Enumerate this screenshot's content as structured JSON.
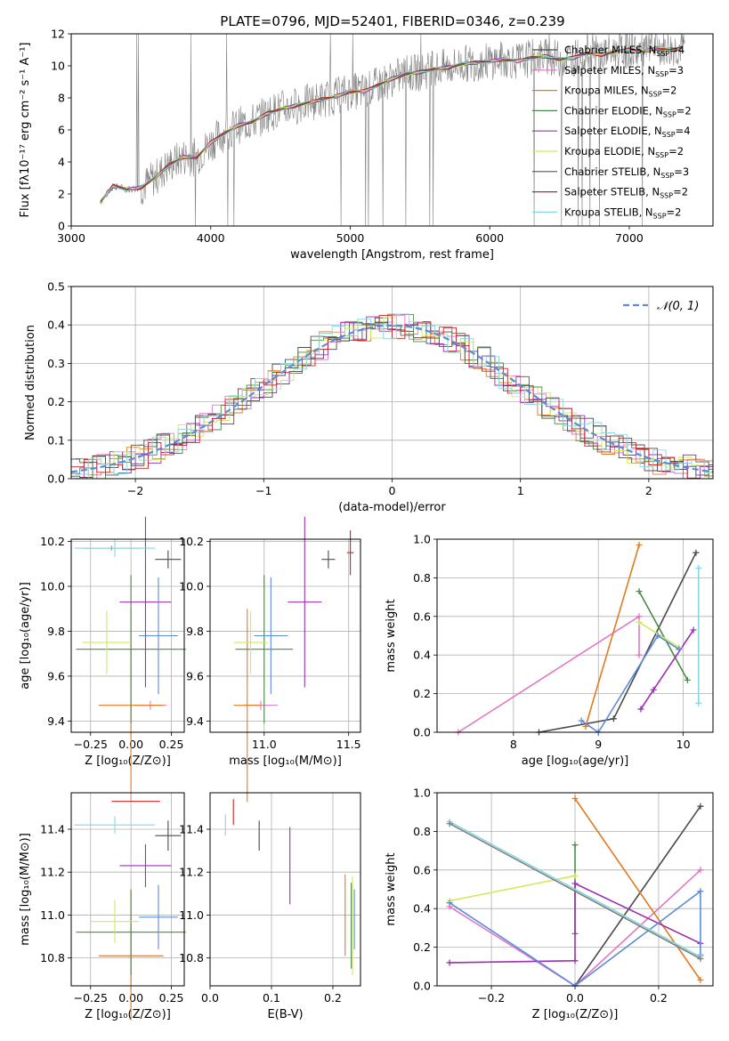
{
  "title": "PLATE=0796, MJD=52401, FIBERID=0346, z=0.239",
  "chart_data": [
    {
      "id": "spectrum",
      "type": "line",
      "xlabel": "wavelength [Angstrom, rest frame]",
      "ylabel": "Flux [fλ10⁻¹⁷ erg cm⁻² s⁻¹ A⁻¹]",
      "xlim": [
        3000,
        7600
      ],
      "ylim": [
        0,
        12
      ],
      "xticks": [
        3000,
        4000,
        5000,
        6000,
        7000
      ],
      "yticks": [
        0,
        2,
        4,
        6,
        8,
        10,
        12
      ],
      "grid": false,
      "legend_position": "top-right",
      "series": [
        {
          "name": "Chabrier MILES, N",
          "sub": "SSP",
          "suffix": "=4",
          "color": "#4a4a4a"
        },
        {
          "name": "Salpeter MILES, N",
          "sub": "SSP",
          "suffix": "=3",
          "color": "#e377c2"
        },
        {
          "name": "Kroupa MILES, N",
          "sub": "SSP",
          "suffix": "=2",
          "color": "#e07b20"
        },
        {
          "name": "Chabrier ELODIE, N",
          "sub": "SSP",
          "suffix": "=2",
          "color": "#4a8a4a"
        },
        {
          "name": "Salpeter ELODIE, N",
          "sub": "SSP",
          "suffix": "=4",
          "color": "#9b30b0"
        },
        {
          "name": "Kroupa ELODIE, N",
          "sub": "SSP",
          "suffix": "=2",
          "color": "#d4e85a"
        },
        {
          "name": "Chabrier STELIB, N",
          "sub": "SSP",
          "suffix": "=3",
          "color": "#555555"
        },
        {
          "name": "Salpeter STELIB, N",
          "sub": "SSP",
          "suffix": "=2",
          "color": "#cc2222"
        },
        {
          "name": "Kroupa STELIB, N",
          "sub": "SSP",
          "suffix": "=2",
          "color": "#86d8e0"
        }
      ],
      "data_color": "#808080",
      "x": [
        3210,
        3300,
        3400,
        3500,
        3600,
        3700,
        3800,
        3900,
        4000,
        4100,
        4200,
        4300,
        4400,
        4500,
        4600,
        4700,
        4800,
        4900,
        5000,
        5100,
        5200,
        5300,
        5400,
        5500,
        5600,
        5700,
        5800,
        5900,
        6000,
        6100,
        6200,
        6300,
        6400,
        6500,
        6600,
        6700,
        6800,
        6900,
        7000,
        7100,
        7200,
        7300,
        7380
      ],
      "model_flux": [
        1.5,
        2.5,
        2.3,
        2.4,
        3.0,
        3.8,
        4.3,
        4.3,
        5.2,
        5.8,
        6.3,
        6.5,
        7.0,
        7.3,
        7.5,
        7.7,
        7.9,
        8.1,
        8.4,
        8.4,
        8.8,
        9.2,
        9.5,
        9.6,
        9.8,
        9.9,
        10.1,
        10.2,
        10.3,
        10.4,
        10.3,
        10.5,
        10.6,
        10.4,
        10.5,
        10.8,
        10.7,
        10.9,
        11.0,
        10.9,
        11.1,
        11.0,
        11.1
      ]
    },
    {
      "id": "residuals",
      "type": "line",
      "xlabel": "(data-model)/error",
      "ylabel": "Normed distribution",
      "xlim": [
        -2.5,
        2.5
      ],
      "ylim": [
        0,
        0.5
      ],
      "xticks": [
        -2,
        -1,
        0,
        1,
        2
      ],
      "xticklabels": [
        "−2",
        "−1",
        "0",
        "1",
        "2"
      ],
      "yticks": [
        0.0,
        0.1,
        0.2,
        0.3,
        0.4,
        0.5
      ],
      "yticklabels": [
        "0.0",
        "0.1",
        "0.2",
        "0.3",
        "0.4",
        "0.5"
      ],
      "grid": true,
      "legend_position": "top-right",
      "gaussian_label": "𝒩(0, 1)",
      "gaussian_color": "#5b8bd9"
    },
    {
      "id": "age-vs-Z",
      "type": "scatter",
      "xlabel": "Z [log₁₀(Z/Z⊙)]",
      "ylabel": "age  [log₁₀(age/yr)]",
      "xlim": [
        -0.37,
        0.33
      ],
      "ylim": [
        9.35,
        10.21
      ],
      "xticks": [
        -0.25,
        0.0,
        0.25
      ],
      "xticklabels": [
        "−0.25",
        "0.00",
        "0.25"
      ],
      "yticks": [
        9.4,
        9.6,
        9.8,
        10.0,
        10.2
      ],
      "yticklabels": [
        "9.4",
        "9.6",
        "9.8",
        "10.0",
        "10.2"
      ],
      "grid": true,
      "points": [
        {
          "x": 0.23,
          "y": 10.12,
          "xerr": 0.08,
          "yerr": 0.04,
          "color": "#4a4a4a"
        },
        {
          "x": 0.12,
          "y": 9.47,
          "xerr": 0.1,
          "yerr": 0.02,
          "color": "#e377c2"
        },
        {
          "x": 0.0,
          "y": 9.47,
          "xerr": 0.2,
          "yerr": 0.43,
          "color": "#e07b20"
        },
        {
          "x": 0.0,
          "y": 9.72,
          "xerr": 0.34,
          "yerr": 0.33,
          "color": "#4a8a4a"
        },
        {
          "x": 0.09,
          "y": 9.93,
          "xerr": 0.16,
          "yerr": 0.38,
          "color": "#9b30b0"
        },
        {
          "x": -0.15,
          "y": 9.75,
          "xerr": 0.15,
          "yerr": 0.14,
          "color": "#d4e85a"
        },
        {
          "x": -0.12,
          "y": 10.17,
          "xerr": 0.18,
          "yerr": 0.01,
          "color": "#808080"
        },
        {
          "x": 0.17,
          "y": 9.78,
          "xerr": 0.12,
          "yerr": 0.26,
          "color": "#5b8bd9"
        },
        {
          "x": -0.1,
          "y": 10.17,
          "xerr": 0.25,
          "yerr": 0.04,
          "color": "#86d8e0"
        }
      ]
    },
    {
      "id": "age-vs-mass",
      "type": "scatter",
      "xlabel": "mass [log₁₀(M/M⊙)]",
      "ylabel": "",
      "xlim": [
        10.68,
        11.57
      ],
      "ylim": [
        9.35,
        10.21
      ],
      "xticks": [
        11.0,
        11.5
      ],
      "xticklabels": [
        "11.0",
        "11.5"
      ],
      "yticks": [
        9.4,
        9.6,
        9.8,
        10.0,
        10.2
      ],
      "yticklabels": [
        "9.4",
        "9.6",
        "9.8",
        "10.0",
        "10.2"
      ],
      "grid": true,
      "points": [
        {
          "x": 11.38,
          "y": 10.12,
          "xerr": 0.04,
          "yerr": 0.04,
          "color": "#4a4a4a"
        },
        {
          "x": 10.98,
          "y": 9.47,
          "xerr": 0.1,
          "yerr": 0.02,
          "color": "#e377c2"
        },
        {
          "x": 10.9,
          "y": 9.47,
          "xerr": 0.08,
          "yerr": 0.43,
          "color": "#e07b20"
        },
        {
          "x": 11.0,
          "y": 9.72,
          "xerr": 0.17,
          "yerr": 0.33,
          "color": "#4a8a4a"
        },
        {
          "x": 11.24,
          "y": 9.93,
          "xerr": 0.1,
          "yerr": 0.38,
          "color": "#9b30b0"
        },
        {
          "x": 10.92,
          "y": 9.75,
          "xerr": 0.1,
          "yerr": 0.14,
          "color": "#d4e85a"
        },
        {
          "x": 11.04,
          "y": 9.78,
          "xerr": 0.1,
          "yerr": 0.26,
          "color": "#5b8bd9"
        },
        {
          "x": 11.51,
          "y": 10.15,
          "xerr": 0.02,
          "yerr": 0.1,
          "color": "#cc2222"
        }
      ]
    },
    {
      "id": "weight-vs-age",
      "type": "line",
      "xlabel": "age  [log₁₀(age/yr)]",
      "ylabel": "mass weight",
      "xlim": [
        7.1,
        10.35
      ],
      "ylim": [
        0,
        1.0
      ],
      "xticks": [
        8,
        9,
        10
      ],
      "xticklabels": [
        "8",
        "9",
        "10"
      ],
      "yticks": [
        0.0,
        0.2,
        0.4,
        0.6,
        0.8,
        1.0
      ],
      "yticklabels": [
        "0.0",
        "0.2",
        "0.4",
        "0.6",
        "0.8",
        "1.0"
      ],
      "grid": true,
      "series": [
        {
          "color": "#4a4a4a",
          "x": [
            8.3,
            9.18,
            10.15
          ],
          "y": [
            0.0,
            0.07,
            0.93
          ]
        },
        {
          "color": "#e377c2",
          "x": [
            7.35,
            9.48,
            9.48
          ],
          "y": [
            0.0,
            0.6,
            0.4
          ]
        },
        {
          "color": "#e07b20",
          "x": [
            8.85,
            9.48
          ],
          "y": [
            0.03,
            0.97
          ]
        },
        {
          "color": "#4a8a4a",
          "x": [
            9.48,
            10.05
          ],
          "y": [
            0.73,
            0.27
          ]
        },
        {
          "color": "#9b30b0",
          "x": [
            9.5,
            9.65,
            10.12
          ],
          "y": [
            0.12,
            0.22,
            0.53
          ]
        },
        {
          "color": "#d4e85a",
          "x": [
            9.48,
            9.95
          ],
          "y": [
            0.57,
            0.44
          ]
        },
        {
          "color": "#5b8bd9",
          "x": [
            8.8,
            9.0,
            9.7,
            9.95
          ],
          "y": [
            0.06,
            0.0,
            0.5,
            0.43
          ]
        },
        {
          "color": "#86d8e0",
          "x": [
            10.18,
            10.18
          ],
          "y": [
            0.85,
            0.15
          ]
        }
      ]
    },
    {
      "id": "mass-vs-Z",
      "type": "scatter",
      "xlabel": "Z [log₁₀(Z/Z⊙)]",
      "ylabel": "mass [log₁₀(M/M⊙)]",
      "xlim": [
        -0.37,
        0.33
      ],
      "ylim": [
        10.67,
        11.57
      ],
      "xticks": [
        -0.25,
        0.0,
        0.25
      ],
      "xticklabels": [
        "−0.25",
        "0.00",
        "0.25"
      ],
      "yticks": [
        10.8,
        11.0,
        11.2,
        11.4
      ],
      "yticklabels": [
        "10.8",
        "11.0",
        "11.2",
        "11.4"
      ],
      "grid": true,
      "points": [
        {
          "x": 0.23,
          "y": 11.37,
          "xerr": 0.08,
          "yerr": 0.07,
          "color": "#4a4a4a"
        },
        {
          "x": 0.0,
          "y": 10.81,
          "xerr": 0.2,
          "yerr": 0.12,
          "color": "#e377c2"
        },
        {
          "x": 0.0,
          "y": 10.81,
          "xerr": 0.2,
          "yerr": 0.3,
          "color": "#e07b20"
        },
        {
          "x": 0.0,
          "y": 10.92,
          "xerr": 0.34,
          "yerr": 0.2,
          "color": "#4a8a4a"
        },
        {
          "x": 0.09,
          "y": 11.23,
          "xerr": 0.16,
          "yerr": 0.1,
          "color": "#9b30b0"
        },
        {
          "x": -0.1,
          "y": 10.97,
          "xerr": 0.15,
          "yerr": 0.1,
          "color": "#d4e85a"
        },
        {
          "x": 0.17,
          "y": 10.99,
          "xerr": 0.12,
          "yerr": 0.15,
          "color": "#5b8bd9"
        },
        {
          "x": 0.03,
          "y": 11.53,
          "xerr": 0.15,
          "yerr": 0.0,
          "color": "#cc2222"
        },
        {
          "x": -0.1,
          "y": 11.42,
          "xerr": 0.25,
          "yerr": 0.04,
          "color": "#86d8e0"
        }
      ]
    },
    {
      "id": "mass-vs-EBV",
      "type": "scatter",
      "xlabel": "E(B-V)",
      "ylabel": "",
      "xlim": [
        0.0,
        0.245
      ],
      "ylim": [
        10.67,
        11.57
      ],
      "xticks": [
        0.0,
        0.1,
        0.2
      ],
      "xticklabels": [
        "0.0",
        "0.1",
        "0.2"
      ],
      "yticks": [
        10.8,
        11.0,
        11.2,
        11.4
      ],
      "yticklabels": [
        "10.8",
        "11.0",
        "11.2",
        "11.4"
      ],
      "grid": true,
      "points": [
        {
          "x": 0.08,
          "y": 11.37,
          "xerr": 0.0,
          "yerr": 0.07,
          "color": "#4a4a4a"
        },
        {
          "x": 0.13,
          "y": 11.23,
          "xerr": 0.0,
          "yerr": 0.18,
          "color": "#9b30b0"
        },
        {
          "x": 0.22,
          "y": 11.0,
          "xerr": 0.0,
          "yerr": 0.19,
          "color": "#e07b20"
        },
        {
          "x": 0.23,
          "y": 10.95,
          "xerr": 0.0,
          "yerr": 0.2,
          "color": "#4a8a4a"
        },
        {
          "x": 0.232,
          "y": 10.95,
          "xerr": 0.0,
          "yerr": 0.23,
          "color": "#d4e85a"
        },
        {
          "x": 0.235,
          "y": 10.98,
          "xerr": 0.0,
          "yerr": 0.14,
          "color": "#5b8bd9"
        },
        {
          "x": 0.038,
          "y": 11.48,
          "xerr": 0.0,
          "yerr": 0.06,
          "color": "#cc2222"
        },
        {
          "x": 0.025,
          "y": 11.42,
          "xerr": 0.0,
          "yerr": 0.05,
          "color": "#86d8e0"
        }
      ]
    },
    {
      "id": "weight-vs-Z",
      "type": "line",
      "xlabel": "Z [log₁₀(Z/Z⊙)]",
      "ylabel": "mass weight",
      "xlim": [
        -0.33,
        0.33
      ],
      "ylim": [
        0,
        1.0
      ],
      "xticks": [
        -0.2,
        0.0,
        0.2
      ],
      "xticklabels": [
        "−0.2",
        "0.0",
        "0.2"
      ],
      "yticks": [
        0.0,
        0.2,
        0.4,
        0.6,
        0.8,
        1.0
      ],
      "yticklabels": [
        "0.0",
        "0.2",
        "0.4",
        "0.6",
        "0.8",
        "1.0"
      ],
      "grid": true,
      "series": [
        {
          "color": "#4a4a4a",
          "x": [
            0.0,
            0.3
          ],
          "y": [
            0.0,
            0.93
          ]
        },
        {
          "color": "#e377c2",
          "x": [
            -0.3,
            0.0,
            0.3
          ],
          "y": [
            0.41,
            0.0,
            0.6
          ]
        },
        {
          "color": "#e07b20",
          "x": [
            0.0,
            0.3
          ],
          "y": [
            0.97,
            0.03
          ]
        },
        {
          "color": "#4a8a4a",
          "x": [
            0.0,
            0.0
          ],
          "y": [
            0.73,
            0.27
          ]
        },
        {
          "color": "#9b30b0",
          "x": [
            -0.3,
            0.0,
            0.0,
            0.3
          ],
          "y": [
            0.12,
            0.13,
            0.53,
            0.22
          ]
        },
        {
          "color": "#d4e85a",
          "x": [
            -0.3,
            0.0
          ],
          "y": [
            0.44,
            0.57
          ]
        },
        {
          "color": "#5b8bd9",
          "x": [
            -0.3,
            0.0,
            0.3,
            0.3
          ],
          "y": [
            0.43,
            0.0,
            0.49,
            0.16
          ]
        },
        {
          "color": "#86d8e0",
          "x": [
            -0.3,
            0.3
          ],
          "y": [
            0.85,
            0.15
          ]
        },
        {
          "color": "#808080",
          "x": [
            -0.3,
            0.3
          ],
          "y": [
            0.84,
            0.14
          ]
        }
      ]
    }
  ]
}
